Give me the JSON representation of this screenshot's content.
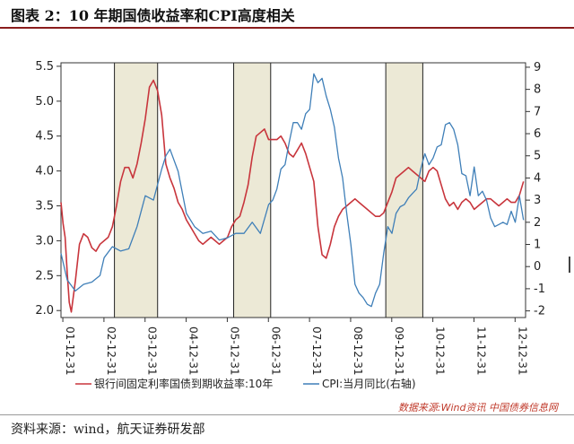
{
  "header": {
    "title": "图表 2：10 年期国债收益率和CPI高度相关"
  },
  "footer": {
    "source": "资料来源：wind，航天证券研发部",
    "watermark": "数据来源:Wind资讯 中国债券信息网"
  },
  "colors": {
    "bond": "#c8353c",
    "cpi": "#3f7fb8",
    "shade": "#ece9d6",
    "title_rule": "#8a1c1c"
  },
  "chart_data": {
    "type": "line",
    "title": "",
    "x_tick_labels": [
      "01-12-31",
      "02-12-31",
      "03-12-31",
      "04-12-31",
      "05-12-31",
      "06-12-31",
      "07-12-31",
      "08-12-31",
      "09-12-31",
      "10-12-31",
      "11-12-31",
      "12-12-31"
    ],
    "x_range": [
      2001.95,
      2013.25
    ],
    "y_left": {
      "ylim": [
        1.9,
        5.55
      ],
      "ticks": [
        "2.0",
        "2.5",
        "3.0",
        "3.5",
        "4.0",
        "4.5",
        "5.0",
        "5.5"
      ]
    },
    "y_right": {
      "ylim": [
        -2.3,
        9.2
      ],
      "ticks": [
        "-2",
        "-1",
        "0",
        "1",
        "2",
        "3",
        "4",
        "5",
        "6",
        "7",
        "8",
        "9"
      ]
    },
    "shaded_periods": [
      [
        2003.25,
        2004.3
      ],
      [
        2006.15,
        2007.05
      ],
      [
        2009.85,
        2010.75
      ]
    ],
    "legend": [
      "银行间固定利率国债到期收益率:10年",
      "CPI:当月同比(右轴)"
    ],
    "series": [
      {
        "name": "银行间固定利率国债到期收益率:10年",
        "axis": "left",
        "x": [
          2001.95,
          2002.0,
          2002.05,
          2002.1,
          2002.15,
          2002.2,
          2002.3,
          2002.4,
          2002.5,
          2002.6,
          2002.7,
          2002.8,
          2002.9,
          2003.0,
          2003.1,
          2003.2,
          2003.3,
          2003.4,
          2003.5,
          2003.6,
          2003.7,
          2003.8,
          2003.9,
          2004.0,
          2004.1,
          2004.2,
          2004.3,
          2004.4,
          2004.5,
          2004.6,
          2004.7,
          2004.8,
          2004.9,
          2005.0,
          2005.1,
          2005.2,
          2005.3,
          2005.4,
          2005.5,
          2005.6,
          2005.7,
          2005.8,
          2005.9,
          2006.0,
          2006.1,
          2006.2,
          2006.3,
          2006.4,
          2006.5,
          2006.6,
          2006.7,
          2006.8,
          2006.9,
          2007.0,
          2007.1,
          2007.2,
          2007.3,
          2007.4,
          2007.5,
          2007.6,
          2007.7,
          2007.8,
          2007.9,
          2008.0,
          2008.1,
          2008.2,
          2008.3,
          2008.4,
          2008.5,
          2008.6,
          2008.7,
          2008.8,
          2008.9,
          2009.0,
          2009.1,
          2009.2,
          2009.3,
          2009.4,
          2009.5,
          2009.6,
          2009.7,
          2009.8,
          2009.9,
          2010.0,
          2010.1,
          2010.2,
          2010.3,
          2010.4,
          2010.5,
          2010.6,
          2010.7,
          2010.8,
          2010.9,
          2011.0,
          2011.1,
          2011.2,
          2011.3,
          2011.4,
          2011.5,
          2011.6,
          2011.7,
          2011.8,
          2011.9,
          2012.0,
          2012.1,
          2012.2,
          2012.3,
          2012.4,
          2012.5,
          2012.6,
          2012.7,
          2012.8,
          2012.9,
          2013.0,
          2013.1,
          2013.2
        ],
        "values": [
          3.55,
          3.25,
          3.05,
          2.55,
          2.12,
          1.98,
          2.42,
          2.95,
          3.1,
          3.05,
          2.9,
          2.85,
          2.95,
          3.0,
          3.05,
          3.2,
          3.5,
          3.85,
          4.05,
          4.05,
          3.9,
          4.1,
          4.4,
          4.75,
          5.2,
          5.3,
          5.15,
          4.8,
          4.1,
          3.9,
          3.75,
          3.55,
          3.45,
          3.3,
          3.2,
          3.1,
          3.0,
          2.95,
          3.0,
          3.05,
          3.0,
          2.95,
          3.0,
          3.05,
          3.2,
          3.3,
          3.35,
          3.55,
          3.8,
          4.2,
          4.5,
          4.55,
          4.6,
          4.45,
          4.45,
          4.45,
          4.5,
          4.4,
          4.25,
          4.2,
          4.3,
          4.4,
          4.25,
          4.05,
          3.85,
          3.2,
          2.8,
          2.75,
          2.95,
          3.2,
          3.35,
          3.45,
          3.5,
          3.55,
          3.6,
          3.55,
          3.5,
          3.45,
          3.4,
          3.35,
          3.35,
          3.4,
          3.55,
          3.7,
          3.9,
          3.95,
          4.0,
          4.05,
          4.0,
          3.95,
          3.9,
          3.85,
          4.0,
          4.05,
          4.0,
          3.8,
          3.6,
          3.5,
          3.55,
          3.45,
          3.55,
          3.6,
          3.55,
          3.45,
          3.5,
          3.55,
          3.6,
          3.6,
          3.55,
          3.5,
          3.55,
          3.6,
          3.55,
          3.55,
          3.65,
          3.85
        ]
      },
      {
        "name": "CPI:当月同比(右轴)",
        "axis": "right",
        "x": [
          2001.95,
          2002.1,
          2002.3,
          2002.5,
          2002.7,
          2002.9,
          2003.0,
          2003.2,
          2003.4,
          2003.6,
          2003.8,
          2004.0,
          2004.2,
          2004.4,
          2004.5,
          2004.6,
          2004.8,
          2005.0,
          2005.2,
          2005.4,
          2005.6,
          2005.8,
          2006.0,
          2006.2,
          2006.4,
          2006.6,
          2006.8,
          2007.0,
          2007.1,
          2007.2,
          2007.3,
          2007.4,
          2007.5,
          2007.6,
          2007.7,
          2007.8,
          2007.9,
          2008.0,
          2008.1,
          2008.2,
          2008.3,
          2008.4,
          2008.5,
          2008.6,
          2008.7,
          2008.8,
          2008.9,
          2009.0,
          2009.1,
          2009.2,
          2009.3,
          2009.4,
          2009.5,
          2009.6,
          2009.7,
          2009.8,
          2009.9,
          2010.0,
          2010.1,
          2010.2,
          2010.3,
          2010.4,
          2010.5,
          2010.6,
          2010.7,
          2010.8,
          2010.9,
          2011.0,
          2011.1,
          2011.2,
          2011.3,
          2011.4,
          2011.5,
          2011.6,
          2011.7,
          2011.8,
          2011.9,
          2012.0,
          2012.1,
          2012.2,
          2012.3,
          2012.4,
          2012.5,
          2012.6,
          2012.7,
          2012.8,
          2012.9,
          2013.0,
          2013.1,
          2013.2
        ],
        "values": [
          0.6,
          -0.6,
          -1.1,
          -0.8,
          -0.7,
          -0.4,
          0.4,
          0.9,
          0.7,
          0.8,
          1.8,
          3.2,
          3.0,
          4.4,
          5.0,
          5.3,
          4.3,
          2.4,
          1.8,
          1.5,
          1.6,
          1.2,
          1.3,
          1.5,
          1.5,
          2.0,
          1.5,
          2.8,
          3.0,
          3.5,
          4.4,
          4.6,
          5.6,
          6.5,
          6.5,
          6.2,
          6.9,
          7.1,
          8.7,
          8.3,
          8.5,
          7.7,
          7.1,
          6.3,
          4.9,
          4.0,
          2.4,
          1.0,
          -0.8,
          -1.2,
          -1.4,
          -1.7,
          -1.8,
          -1.2,
          -0.8,
          0.6,
          1.8,
          1.5,
          2.4,
          2.7,
          2.8,
          3.1,
          3.3,
          3.5,
          4.4,
          5.1,
          4.6,
          4.9,
          5.4,
          5.5,
          6.4,
          6.5,
          6.2,
          5.5,
          4.2,
          4.1,
          3.2,
          4.5,
          3.2,
          3.4,
          3.0,
          2.2,
          1.8,
          1.9,
          2.0,
          1.9,
          2.5,
          2.0,
          3.2,
          2.1
        ]
      }
    ]
  }
}
